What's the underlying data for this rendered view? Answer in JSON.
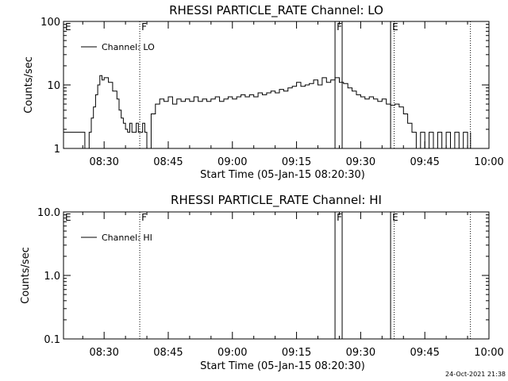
{
  "footer_timestamp": "24-Oct-2021 21:38",
  "chart_data": [
    {
      "type": "line",
      "title": "RHESSI PARTICLE_RATE Channel: LO",
      "xlabel": "Start Time (05-Jan-15 08:20:30)",
      "ylabel": "Counts/sec",
      "y_scale": "log",
      "ylim": [
        1,
        100
      ],
      "yticks": [
        1,
        10,
        100
      ],
      "ytick_labels": [
        "1",
        "10",
        "100"
      ],
      "xlim": [
        "08:20:30",
        "10:00:00"
      ],
      "xtick_labels": [
        "08:30",
        "08:45",
        "09:00",
        "09:15",
        "09:30",
        "09:45",
        "10:00"
      ],
      "xticks_minutes": [
        510,
        525,
        540,
        555,
        570,
        585,
        600
      ],
      "legend": {
        "label": "Channel: LO",
        "position": "top-left"
      },
      "markers": [
        {
          "label": "E",
          "time": "08:20:30",
          "style": "solid"
        },
        {
          "label": "F",
          "time": "08:38:20",
          "style": "dotted"
        },
        {
          "label": "F",
          "time": "09:24:00",
          "style": "solid"
        },
        {
          "label": "",
          "time": "09:25:40",
          "style": "solid"
        },
        {
          "label": "E",
          "time": "09:37:00",
          "style": "solid"
        },
        {
          "label": "",
          "time": "09:37:50",
          "style": "dotted"
        },
        {
          "label": "",
          "time": "09:55:40",
          "style": "dotted"
        }
      ],
      "series": [
        {
          "name": "Channel: LO",
          "x_minutes": [
            500.5,
            505,
            505.5,
            506.5,
            507,
            507.5,
            508,
            508.5,
            509,
            509.5,
            510,
            511,
            512,
            513,
            513.5,
            514,
            514.5,
            515,
            515.5,
            516,
            516.5,
            517,
            517.5,
            518,
            518.5,
            519,
            519.5,
            520,
            521,
            522,
            523,
            524,
            525,
            526,
            527,
            528,
            529,
            530,
            531,
            532,
            533,
            534,
            535,
            536,
            537,
            538,
            539,
            540,
            541,
            542,
            543,
            544,
            545,
            546,
            547,
            548,
            549,
            550,
            551,
            552,
            553,
            554,
            555,
            556,
            557,
            558,
            559,
            560,
            561,
            562,
            563,
            564,
            565,
            566,
            567,
            568,
            569,
            570,
            571,
            572,
            573,
            574,
            575,
            576,
            577,
            578,
            579,
            580,
            581,
            582,
            583,
            584,
            585,
            586,
            587,
            588,
            589,
            590,
            591,
            592,
            593,
            594,
            595,
            595.7
          ],
          "values": [
            1.8,
            1.8,
            1,
            1.8,
            3,
            4.5,
            7,
            10,
            14,
            12,
            13,
            11,
            8,
            6,
            4,
            3,
            2.5,
            2,
            1.8,
            2.5,
            1.8,
            1.8,
            2.5,
            1.8,
            1.8,
            2.5,
            1.8,
            1,
            3.5,
            5,
            6,
            5.5,
            6.5,
            5,
            6,
            5.5,
            6,
            5.5,
            6.5,
            5.5,
            6,
            5.5,
            6,
            6.5,
            5.5,
            6,
            6.5,
            6,
            6.5,
            7,
            6.5,
            7,
            6.5,
            7.5,
            7,
            7.5,
            8,
            7.5,
            8.5,
            8,
            9,
            9.5,
            11,
            9.5,
            10,
            10.5,
            12,
            10,
            13,
            11,
            12,
            13,
            11,
            10.5,
            9,
            8,
            7,
            6.5,
            6,
            6.5,
            6,
            5.5,
            6,
            5,
            4.8,
            5,
            4.5,
            3.5,
            2.5,
            1.8,
            1,
            1.8,
            1,
            1.8,
            1,
            1.8,
            1,
            1.8,
            1,
            1.8,
            1,
            1.8,
            1,
            1.8
          ]
        }
      ]
    },
    {
      "type": "line",
      "title": "RHESSI PARTICLE_RATE Channel: HI",
      "xlabel": "Start Time (05-Jan-15 08:20:30)",
      "ylabel": "Counts/sec",
      "y_scale": "log",
      "ylim": [
        0.1,
        10
      ],
      "yticks": [
        0.1,
        1,
        10
      ],
      "ytick_labels": [
        "0.1",
        "1.0",
        "10.0"
      ],
      "xlim": [
        "08:20:30",
        "10:00:00"
      ],
      "xtick_labels": [
        "08:30",
        "08:45",
        "09:00",
        "09:15",
        "09:30",
        "09:45",
        "10:00"
      ],
      "xticks_minutes": [
        510,
        525,
        540,
        555,
        570,
        585,
        600
      ],
      "legend": {
        "label": "Channel: HI",
        "position": "top-left"
      },
      "markers": [
        {
          "label": "E",
          "time": "08:20:30",
          "style": "solid"
        },
        {
          "label": "F",
          "time": "08:38:20",
          "style": "dotted"
        },
        {
          "label": "F",
          "time": "09:24:00",
          "style": "solid"
        },
        {
          "label": "",
          "time": "09:25:40",
          "style": "solid"
        },
        {
          "label": "E",
          "time": "09:37:00",
          "style": "solid"
        },
        {
          "label": "",
          "time": "09:37:50",
          "style": "dotted"
        },
        {
          "label": "",
          "time": "09:55:40",
          "style": "dotted"
        }
      ],
      "series": [
        {
          "name": "Channel: HI",
          "x_minutes": [],
          "values": []
        }
      ]
    }
  ]
}
